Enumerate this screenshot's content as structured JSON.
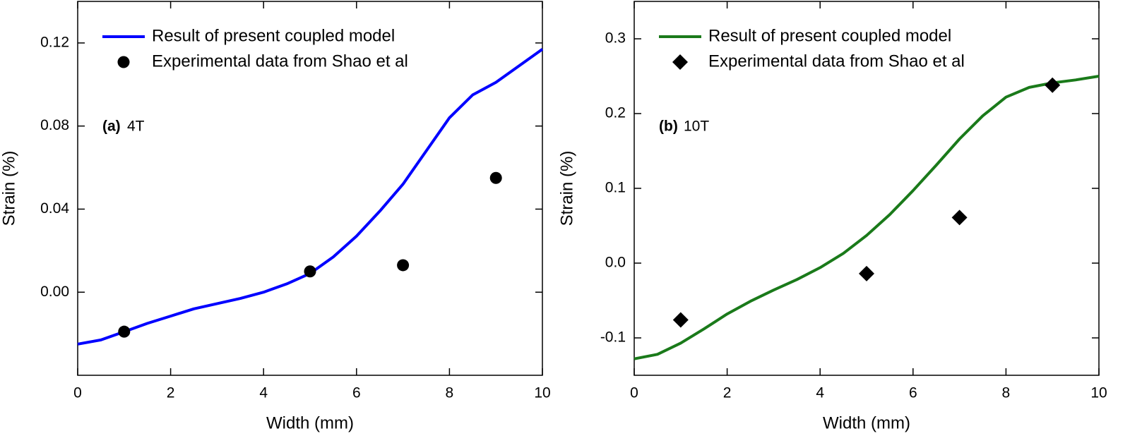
{
  "chart_data": [
    {
      "type": "line",
      "panel": "(a)",
      "annotation": "4T",
      "xlabel": "Width (mm)",
      "ylabel": "Strain (%)",
      "xlim": [
        0,
        10
      ],
      "xticks": [
        0,
        2,
        4,
        6,
        8,
        10
      ],
      "ylim": [
        -0.04,
        0.14
      ],
      "yticks": [
        {
          "value": 0,
          "label": "0.00"
        },
        {
          "value": 0.04,
          "label": "0.04"
        },
        {
          "value": 0.08,
          "label": "0.08"
        },
        {
          "value": 0.12,
          "label": "0.12"
        }
      ],
      "series": [
        {
          "name": "Result of present coupled model",
          "type": "line",
          "color": "#0000ff",
          "x": [
            0,
            0.5,
            1,
            1.5,
            2,
            2.5,
            3,
            3.5,
            4,
            4.5,
            5,
            5.5,
            6,
            6.5,
            7,
            7.5,
            8,
            8.5,
            9,
            9.5,
            10
          ],
          "values": [
            -0.025,
            -0.023,
            -0.019,
            -0.015,
            -0.0115,
            -0.008,
            -0.0055,
            -0.003,
            0.0,
            0.004,
            0.009,
            0.017,
            0.027,
            0.039,
            0.052,
            0.068,
            0.084,
            0.095,
            0.101,
            0.109,
            0.117
          ]
        },
        {
          "name": "Experimental data from Shao et al",
          "type": "scatter",
          "marker": "circle",
          "color": "#000000",
          "x": [
            1,
            5,
            7,
            9
          ],
          "values": [
            -0.019,
            0.01,
            0.013,
            0.055
          ]
        }
      ]
    },
    {
      "type": "line",
      "panel": "(b)",
      "annotation": "10T",
      "xlabel": "Width (mm)",
      "ylabel": "Strain (%)",
      "xlim": [
        0,
        10
      ],
      "xticks": [
        0,
        2,
        4,
        6,
        8,
        10
      ],
      "ylim": [
        -0.15,
        0.35
      ],
      "yticks": [
        -0.1,
        {
          "value": 0,
          "label": "0.0"
        },
        0.1,
        0.2,
        0.3
      ],
      "series": [
        {
          "name": "Result of present coupled model",
          "type": "line",
          "color": "#1a7a1a",
          "x": [
            0,
            0.5,
            1,
            1.5,
            2,
            2.5,
            3,
            3.5,
            4,
            4.5,
            5,
            5.5,
            6,
            6.5,
            7,
            7.5,
            8,
            8.5,
            9,
            9.5,
            10
          ],
          "values": [
            -0.128,
            -0.122,
            -0.107,
            -0.088,
            -0.068,
            -0.051,
            -0.036,
            -0.022,
            -0.006,
            0.013,
            0.037,
            0.065,
            0.097,
            0.131,
            0.166,
            0.197,
            0.222,
            0.235,
            0.241,
            0.245,
            0.25
          ]
        },
        {
          "name": "Experimental data from Shao et al",
          "type": "scatter",
          "marker": "diamond",
          "color": "#000000",
          "x": [
            1,
            5,
            7,
            9
          ],
          "values": [
            -0.076,
            -0.014,
            0.061,
            0.238
          ]
        }
      ]
    }
  ]
}
